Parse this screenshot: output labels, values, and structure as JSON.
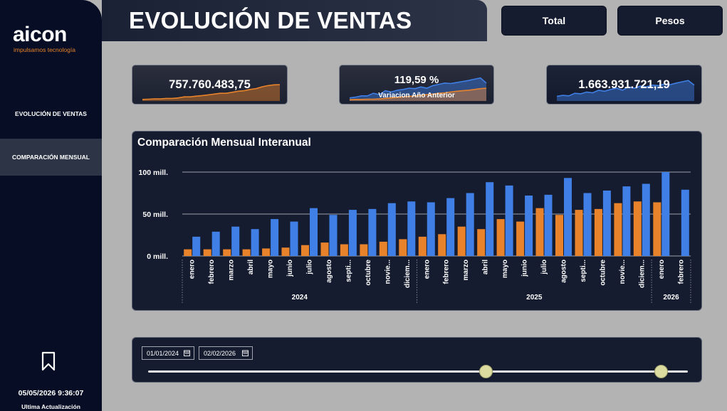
{
  "sidebar": {
    "logo_text": "aicon",
    "logo_tagline": "impulsamos tecnología",
    "items": [
      {
        "label": "EVOLUCIÓN DE VENTAS",
        "active": false
      },
      {
        "label": "COMPARACIÓN MENSUAL",
        "active": true
      }
    ],
    "timestamp": "05/05/2026 9:36:07",
    "timestamp_label": "Ultima Actualización"
  },
  "header": {
    "title": "EVOLUCIÓN DE VENTAS",
    "buttons": [
      "Total",
      "Pesos"
    ]
  },
  "kpis": [
    {
      "value": "757.760.483,75",
      "sub": "",
      "color": "#e8832b",
      "spark": [
        0.06,
        0.07,
        0.08,
        0.08,
        0.1,
        0.1,
        0.12,
        0.16,
        0.16,
        0.19,
        0.21,
        0.24,
        0.27,
        0.3,
        0.3,
        0.34,
        0.38,
        0.4,
        0.45,
        0.48,
        0.55,
        0.6,
        0.63,
        0.64
      ]
    },
    {
      "value": "119,59 %",
      "sub": "Variacion Año Anterior",
      "color": "#3f7fe6",
      "color2": "#e8832b",
      "spark": [
        0.12,
        0.15,
        0.2,
        0.2,
        0.3,
        0.25,
        0.4,
        0.35,
        0.42,
        0.45,
        0.5,
        0.48,
        0.55,
        0.5,
        0.6,
        0.65,
        0.7,
        0.68,
        0.72,
        0.76,
        0.8,
        0.85,
        0.9,
        0.7
      ],
      "spark2": [
        0.05,
        0.06,
        0.06,
        0.07,
        0.07,
        0.08,
        0.1,
        0.12,
        0.14,
        0.16,
        0.18,
        0.2,
        0.22,
        0.25,
        0.27,
        0.3,
        0.32,
        0.35,
        0.38,
        0.4,
        0.42,
        0.45,
        0.48,
        0.5
      ]
    },
    {
      "value": "1.663.931.721,19",
      "sub": "",
      "color": "#3f7fe6",
      "spark": [
        0.18,
        0.22,
        0.2,
        0.3,
        0.28,
        0.35,
        0.32,
        0.42,
        0.38,
        0.45,
        0.5,
        0.42,
        0.55,
        0.5,
        0.58,
        0.55,
        0.62,
        0.6,
        0.66,
        0.64,
        0.7,
        0.75,
        0.8,
        0.62
      ]
    }
  ],
  "chart": {
    "title": "Comparación Mensual Interanual",
    "colors": {
      "current": "#3f7fe6",
      "previous": "#e8832b"
    }
  },
  "chart_data": {
    "type": "bar",
    "title": "Comparación Mensual Interanual",
    "ylim": [
      0,
      100
    ],
    "y_ticks": [
      {
        "value": 0,
        "label": "0 mill."
      },
      {
        "value": 50,
        "label": "50 mill."
      },
      {
        "value": 100,
        "label": "100 mill."
      }
    ],
    "categories": [
      "enero",
      "febrero",
      "marzo",
      "abril",
      "mayo",
      "junio",
      "julio",
      "agosto",
      "septi...",
      "octubre",
      "novie...",
      "diciem...",
      "enero",
      "febrero",
      "marzo",
      "abril",
      "mayo",
      "junio",
      "julio",
      "agosto",
      "septi...",
      "octubre",
      "novie...",
      "diciem...",
      "enero",
      "febrero"
    ],
    "year_groups": [
      {
        "label": "2024",
        "start": 0,
        "end": 11
      },
      {
        "label": "2025",
        "start": 12,
        "end": 23
      },
      {
        "label": "2026",
        "start": 24,
        "end": 25
      }
    ],
    "series": [
      {
        "name": "",
        "color": "#e8832b",
        "values": [
          8,
          8,
          8,
          8,
          9,
          10,
          13,
          16,
          14,
          14,
          17,
          20,
          23,
          26,
          35,
          32,
          44,
          41,
          57,
          49,
          55,
          56,
          63,
          65,
          64,
          null
        ]
      },
      {
        "name": "",
        "color": "#3f7fe6",
        "values": [
          23,
          29,
          35,
          32,
          44,
          41,
          57,
          49,
          55,
          56,
          63,
          65,
          64,
          69,
          75,
          88,
          84,
          72,
          73,
          93,
          75,
          78,
          83,
          86,
          100,
          79
        ]
      }
    ]
  },
  "slicer": {
    "start_date": "01/01/2024",
    "end_date": "02/02/2026",
    "start_fraction": 0.626,
    "end_fraction": 0.95
  }
}
